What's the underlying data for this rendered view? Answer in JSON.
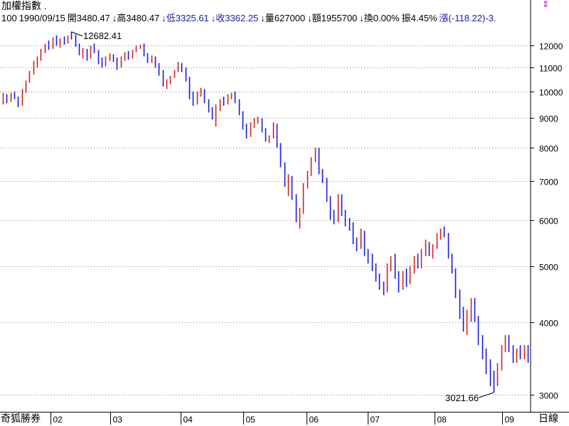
{
  "header": {
    "title": "加權指數 .",
    "info": [
      {
        "text": "100",
        "color": "black"
      },
      {
        "text": "1990/09/15",
        "color": "black"
      },
      {
        "text": "開3480.47",
        "color": "black"
      },
      {
        "text": "↓高3480.47",
        "color": "black"
      },
      {
        "text": "↓低3325.61",
        "color": "blue"
      },
      {
        "text": "↓收3362.25",
        "color": "blue"
      },
      {
        "text": "↓量627000",
        "color": "black"
      },
      {
        "text": "↓額1955700",
        "color": "black"
      },
      {
        "text": "↓換0.00%",
        "color": "black"
      },
      {
        "text": "振4.45%",
        "color": "black"
      },
      {
        "text": "漲(-118.22)-3.",
        "color": "blue"
      }
    ],
    "corner_icon": "resize-arrow-icon"
  },
  "footer": {
    "left_label": "奇狐勝券",
    "right_label": "日線"
  },
  "chart_data": {
    "type": "ohlc",
    "scale": "log",
    "y_ticks": [
      3000,
      4000,
      5000,
      6000,
      7000,
      8000,
      9000,
      10000,
      11000,
      12000
    ],
    "x_ticks": [
      "02",
      "03",
      "04",
      "05",
      "06",
      "07",
      "08",
      "09"
    ],
    "annotations": [
      {
        "text": "12682.41",
        "value": 12682.41
      },
      {
        "text": "3021.66",
        "value": 3021.66
      }
    ],
    "up_color": "#d02020",
    "down_color": "#1a1ae0",
    "bars": [
      [
        9600,
        9950,
        9500,
        9800
      ],
      [
        9800,
        9900,
        9550,
        9650
      ],
      [
        9650,
        9950,
        9600,
        9900
      ],
      [
        9900,
        10000,
        9700,
        9750
      ],
      [
        9750,
        9800,
        9400,
        9500
      ],
      [
        9500,
        10100,
        9450,
        10000
      ],
      [
        10000,
        10450,
        9950,
        10400
      ],
      [
        10400,
        10850,
        10350,
        10800
      ],
      [
        10800,
        11300,
        10700,
        11200
      ],
      [
        11200,
        11500,
        11000,
        11400
      ],
      [
        11400,
        11850,
        11300,
        11750
      ],
      [
        11750,
        12100,
        11650,
        11950
      ],
      [
        11950,
        12250,
        11800,
        11900
      ],
      [
        11900,
        12400,
        11850,
        12300
      ],
      [
        12300,
        12500,
        12000,
        12100
      ],
      [
        12100,
        12350,
        11900,
        12250
      ],
      [
        12250,
        12450,
        12050,
        12150
      ],
      [
        12150,
        12500,
        12100,
        12450
      ],
      [
        12450,
        12682,
        12300,
        12400
      ],
      [
        12400,
        12550,
        11950,
        12050
      ],
      [
        12050,
        12100,
        11550,
        11650
      ],
      [
        11650,
        11900,
        11400,
        11800
      ],
      [
        11800,
        11850,
        11300,
        11450
      ],
      [
        11450,
        12000,
        11400,
        11900
      ],
      [
        11900,
        12100,
        11650,
        11750
      ],
      [
        11750,
        11800,
        11150,
        11300
      ],
      [
        11300,
        11450,
        11000,
        11100
      ],
      [
        11100,
        11500,
        11050,
        11400
      ],
      [
        11400,
        11650,
        11300,
        11550
      ],
      [
        11550,
        11600,
        11250,
        11350
      ],
      [
        11350,
        11450,
        10900,
        11050
      ],
      [
        11050,
        11500,
        11000,
        11400
      ],
      [
        11400,
        11700,
        11300,
        11650
      ],
      [
        11650,
        11750,
        11350,
        11450
      ],
      [
        11450,
        11800,
        11400,
        11750
      ],
      [
        11750,
        12000,
        11700,
        11950
      ],
      [
        11950,
        12050,
        11850,
        12000
      ],
      [
        12000,
        12100,
        11500,
        11600
      ],
      [
        11600,
        11650,
        11200,
        11300
      ],
      [
        11300,
        11550,
        11200,
        11450
      ],
      [
        11450,
        11500,
        11000,
        11100
      ],
      [
        11100,
        11200,
        10650,
        10800
      ],
      [
        10800,
        10900,
        10200,
        10300
      ],
      [
        10300,
        10500,
        10100,
        10400
      ],
      [
        10400,
        10650,
        10300,
        10600
      ],
      [
        10600,
        10900,
        10550,
        10850
      ],
      [
        10850,
        11250,
        10800,
        11150
      ],
      [
        11150,
        11200,
        10800,
        10950
      ],
      [
        10950,
        11000,
        10400,
        10500
      ],
      [
        10500,
        10600,
        9700,
        9800
      ],
      [
        9800,
        10000,
        9450,
        9550
      ],
      [
        9550,
        10000,
        9500,
        9900
      ],
      [
        9900,
        10150,
        9800,
        10050
      ],
      [
        10050,
        10100,
        9550,
        9650
      ],
      [
        9650,
        9700,
        9200,
        9350
      ],
      [
        9350,
        9400,
        8950,
        9050
      ],
      [
        9050,
        9500,
        8700,
        9300
      ],
      [
        9300,
        9700,
        9250,
        9600
      ],
      [
        9600,
        9800,
        9450,
        9550
      ],
      [
        9550,
        9900,
        9500,
        9800
      ],
      [
        9800,
        9950,
        9700,
        9900
      ],
      [
        9900,
        10000,
        9550,
        9650
      ],
      [
        9650,
        9700,
        9100,
        9200
      ],
      [
        9200,
        9250,
        8600,
        8700
      ],
      [
        8700,
        8800,
        8300,
        8400
      ],
      [
        8400,
        8850,
        8350,
        8750
      ],
      [
        8750,
        9000,
        8650,
        8900
      ],
      [
        8900,
        9050,
        8800,
        8950
      ],
      [
        8950,
        9000,
        8500,
        8600
      ],
      [
        8600,
        8650,
        8200,
        8300
      ],
      [
        8300,
        8400,
        8150,
        8350
      ],
      [
        8350,
        8850,
        8300,
        8750
      ],
      [
        8750,
        8800,
        8000,
        8100
      ],
      [
        8100,
        8150,
        7400,
        7500
      ],
      [
        7500,
        7550,
        6850,
        6950
      ],
      [
        6950,
        7200,
        6600,
        7100
      ],
      [
        7100,
        7150,
        6500,
        6600
      ],
      [
        6600,
        6650,
        5950,
        6050
      ],
      [
        6050,
        6300,
        5800,
        6200
      ],
      [
        6200,
        6950,
        6150,
        6850
      ],
      [
        6850,
        7300,
        6800,
        7200
      ],
      [
        7200,
        7700,
        7150,
        7600
      ],
      [
        7600,
        8000,
        7550,
        7950
      ],
      [
        7950,
        8000,
        7200,
        7300
      ],
      [
        7300,
        7350,
        6950,
        7050
      ],
      [
        7050,
        7100,
        6450,
        6550
      ],
      [
        6550,
        6600,
        6000,
        6100
      ],
      [
        6100,
        6250,
        5900,
        6000
      ],
      [
        6000,
        6650,
        5950,
        6550
      ],
      [
        6550,
        6650,
        6100,
        6200
      ],
      [
        6200,
        6250,
        5850,
        5950
      ],
      [
        5950,
        6050,
        5750,
        5900
      ],
      [
        5900,
        5950,
        5450,
        5550
      ],
      [
        5550,
        5600,
        5300,
        5400
      ],
      [
        5400,
        5800,
        5350,
        5700
      ],
      [
        5700,
        5750,
        5200,
        5300
      ],
      [
        5300,
        5350,
        5050,
        5150
      ],
      [
        5150,
        5250,
        4900,
        5000
      ],
      [
        5000,
        5050,
        4700,
        4800
      ],
      [
        4800,
        4850,
        4550,
        4650
      ],
      [
        4650,
        4700,
        4450,
        4550
      ],
      [
        4550,
        5050,
        4500,
        4950
      ],
      [
        4950,
        5200,
        4900,
        5100
      ],
      [
        5100,
        5250,
        4750,
        4850
      ],
      [
        4850,
        4900,
        4500,
        4600
      ],
      [
        4600,
        4900,
        4550,
        4800
      ],
      [
        4800,
        4950,
        4600,
        4700
      ],
      [
        4700,
        5000,
        4650,
        4900
      ],
      [
        4900,
        5200,
        4850,
        5100
      ],
      [
        5100,
        5250,
        4950,
        5000
      ],
      [
        5000,
        5350,
        4950,
        5250
      ],
      [
        5250,
        5550,
        5200,
        5450
      ],
      [
        5450,
        5500,
        5200,
        5300
      ],
      [
        5300,
        5450,
        5150,
        5400
      ],
      [
        5400,
        5700,
        5350,
        5600
      ],
      [
        5600,
        5800,
        5550,
        5750
      ],
      [
        5750,
        5850,
        5600,
        5650
      ],
      [
        5650,
        5700,
        5150,
        5200
      ],
      [
        5200,
        5250,
        4850,
        4900
      ],
      [
        4900,
        4950,
        4400,
        4500
      ],
      [
        4500,
        4550,
        4050,
        4150
      ],
      [
        4150,
        4250,
        3850,
        3950
      ],
      [
        3950,
        4200,
        3800,
        4100
      ],
      [
        4100,
        4400,
        4000,
        4350
      ],
      [
        4350,
        4400,
        4000,
        4050
      ],
      [
        4050,
        4100,
        3650,
        3700
      ],
      [
        3700,
        3800,
        3450,
        3550
      ],
      [
        3550,
        3600,
        3250,
        3350
      ],
      [
        3350,
        3450,
        3100,
        3250
      ],
      [
        3250,
        3300,
        3021.66,
        3150
      ],
      [
        3150,
        3400,
        3100,
        3350
      ],
      [
        3350,
        3650,
        3300,
        3600
      ],
      [
        3600,
        3800,
        3550,
        3750
      ],
      [
        3750,
        3800,
        3550,
        3600
      ],
      [
        3600,
        3650,
        3400,
        3450
      ],
      [
        3450,
        3600,
        3400,
        3550
      ],
      [
        3550,
        3650,
        3450,
        3500
      ],
      [
        3500,
        3650,
        3450,
        3600
      ],
      [
        3600,
        3650,
        3400,
        3450
      ]
    ]
  }
}
